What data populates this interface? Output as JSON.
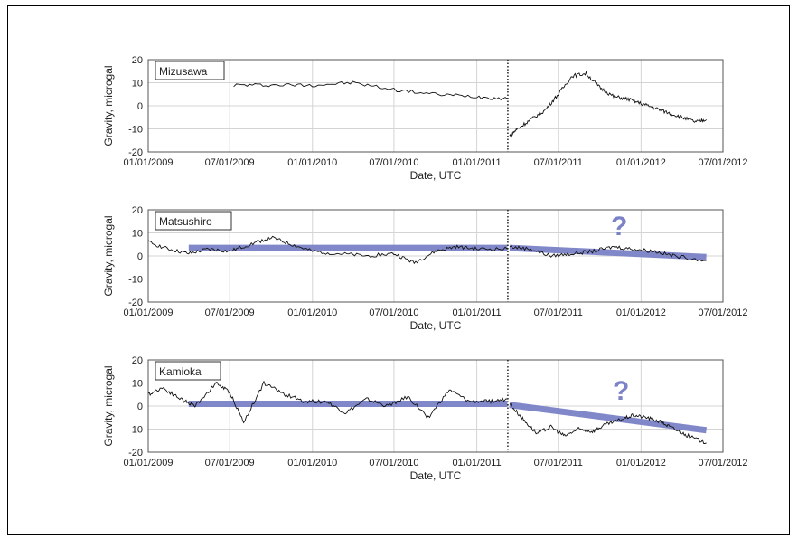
{
  "colors": {
    "trend": "#7b82c7",
    "question": "#7b82c7",
    "trace": "#111111",
    "grid": "#d4d4d4",
    "event_line": "#000000"
  },
  "chart_data": [
    {
      "type": "line",
      "station": "Mizusawa",
      "xlabel": "Date, UTC",
      "ylabel": "Gravity, microgal",
      "xlim": [
        "2009-01-01",
        "2012-07-01"
      ],
      "ylim": [
        -20,
        20
      ],
      "yticks": [
        -20,
        -10,
        0,
        10,
        20
      ],
      "xticks": [
        "01/01/2009",
        "07/01/2009",
        "01/01/2010",
        "07/01/2010",
        "01/01/2011",
        "07/01/2011",
        "01/01/2012",
        "07/01/2012"
      ],
      "grid": true,
      "event_marker": "2011-03-11",
      "series": [
        {
          "segment": "before",
          "x": [
            "2009-07-10",
            "2009-10-01",
            "2010-01-01",
            "2010-04-01",
            "2010-07-01",
            "2010-10-01",
            "2011-01-01",
            "2011-03-10"
          ],
          "y": [
            9,
            9,
            9,
            10,
            7,
            5,
            4,
            3
          ]
        },
        {
          "segment": "after",
          "x": [
            "2011-03-15",
            "2011-04-01",
            "2011-05-01",
            "2011-06-01",
            "2011-07-01",
            "2011-08-01",
            "2011-09-01",
            "2011-10-01",
            "2011-11-01",
            "2011-12-01",
            "2012-01-01",
            "2012-02-01",
            "2012-03-01",
            "2012-04-01",
            "2012-05-01",
            "2012-05-25"
          ],
          "y": [
            -13,
            -10,
            -6,
            -2,
            5,
            13,
            14,
            8,
            4,
            3,
            1,
            -1,
            -3,
            -5,
            -7,
            -6
          ]
        }
      ],
      "trend": []
    },
    {
      "type": "line",
      "station": "Matsushiro",
      "xlabel": "Date, UTC",
      "ylabel": "Gravity, microgal",
      "xlim": [
        "2009-01-01",
        "2012-07-01"
      ],
      "ylim": [
        -20,
        20
      ],
      "yticks": [
        -20,
        -10,
        0,
        10,
        20
      ],
      "xticks": [
        "01/01/2009",
        "07/01/2009",
        "01/01/2010",
        "07/01/2010",
        "01/01/2011",
        "07/01/2011",
        "01/01/2012",
        "07/01/2012"
      ],
      "grid": true,
      "event_marker": "2011-03-11",
      "series": [
        {
          "segment": "before",
          "x": [
            "2009-01-01",
            "2009-02-15",
            "2009-04-01",
            "2009-05-15",
            "2009-07-01",
            "2009-08-15",
            "2009-10-01",
            "2009-11-15",
            "2010-01-01",
            "2010-03-01",
            "2010-05-01",
            "2010-07-01",
            "2010-08-15",
            "2010-10-01",
            "2010-11-15",
            "2011-01-01",
            "2011-03-10"
          ],
          "y": [
            6,
            3,
            1,
            3,
            2,
            5,
            8,
            5,
            2,
            1,
            0,
            1,
            -3,
            2,
            4,
            3,
            3
          ]
        },
        {
          "segment": "after",
          "x": [
            "2011-03-15",
            "2011-05-01",
            "2011-06-15",
            "2011-08-01",
            "2011-09-15",
            "2011-11-01",
            "2011-12-15",
            "2012-02-01",
            "2012-03-15",
            "2012-05-25"
          ],
          "y": [
            4,
            3,
            0,
            1,
            2,
            4,
            3,
            2,
            0,
            -2
          ]
        }
      ],
      "trend": [
        {
          "x": [
            "2009-04-01",
            "2011-03-10"
          ],
          "y": [
            3.5,
            3.5
          ]
        },
        {
          "x": [
            "2011-03-15",
            "2012-05-25"
          ],
          "y": [
            3.5,
            -0.5
          ]
        }
      ],
      "annotation": "?"
    },
    {
      "type": "line",
      "station": "Kamioka",
      "xlabel": "Date, UTC",
      "ylabel": "Gravity, microgal",
      "xlim": [
        "2009-01-01",
        "2012-07-01"
      ],
      "ylim": [
        -20,
        20
      ],
      "yticks": [
        -20,
        -10,
        0,
        10,
        20
      ],
      "xticks": [
        "01/01/2009",
        "07/01/2009",
        "01/01/2010",
        "07/01/2010",
        "01/01/2011",
        "07/01/2011",
        "01/01/2012",
        "07/01/2012"
      ],
      "grid": true,
      "event_marker": "2011-03-11",
      "series": [
        {
          "segment": "before",
          "x": [
            "2009-01-01",
            "2009-02-01",
            "2009-03-15",
            "2009-04-15",
            "2009-06-01",
            "2009-07-01",
            "2009-08-01",
            "2009-09-15",
            "2009-11-01",
            "2009-12-15",
            "2010-02-01",
            "2010-03-15",
            "2010-05-01",
            "2010-06-15",
            "2010-08-01",
            "2010-09-15",
            "2010-11-01",
            "2010-12-15",
            "2011-02-01",
            "2011-03-10"
          ],
          "y": [
            5,
            8,
            3,
            0,
            10,
            6,
            -7,
            10,
            5,
            2,
            2,
            -3,
            3,
            0,
            4,
            -5,
            7,
            2,
            2,
            3
          ]
        },
        {
          "segment": "after",
          "x": [
            "2011-03-15",
            "2011-04-15",
            "2011-05-15",
            "2011-06-15",
            "2011-07-15",
            "2011-08-15",
            "2011-09-15",
            "2011-10-15",
            "2011-11-15",
            "2011-12-15",
            "2012-01-15",
            "2012-02-15",
            "2012-03-15",
            "2012-04-15",
            "2012-05-25"
          ],
          "y": [
            1,
            -6,
            -12,
            -9,
            -13,
            -10,
            -11,
            -8,
            -6,
            -4,
            -5,
            -7,
            -10,
            -13,
            -16
          ]
        }
      ],
      "trend": [
        {
          "x": [
            "2009-04-01",
            "2011-03-10"
          ],
          "y": [
            1,
            1
          ]
        },
        {
          "x": [
            "2011-03-15",
            "2012-05-25"
          ],
          "y": [
            0.5,
            -10.5
          ]
        }
      ],
      "annotation": "?"
    }
  ]
}
